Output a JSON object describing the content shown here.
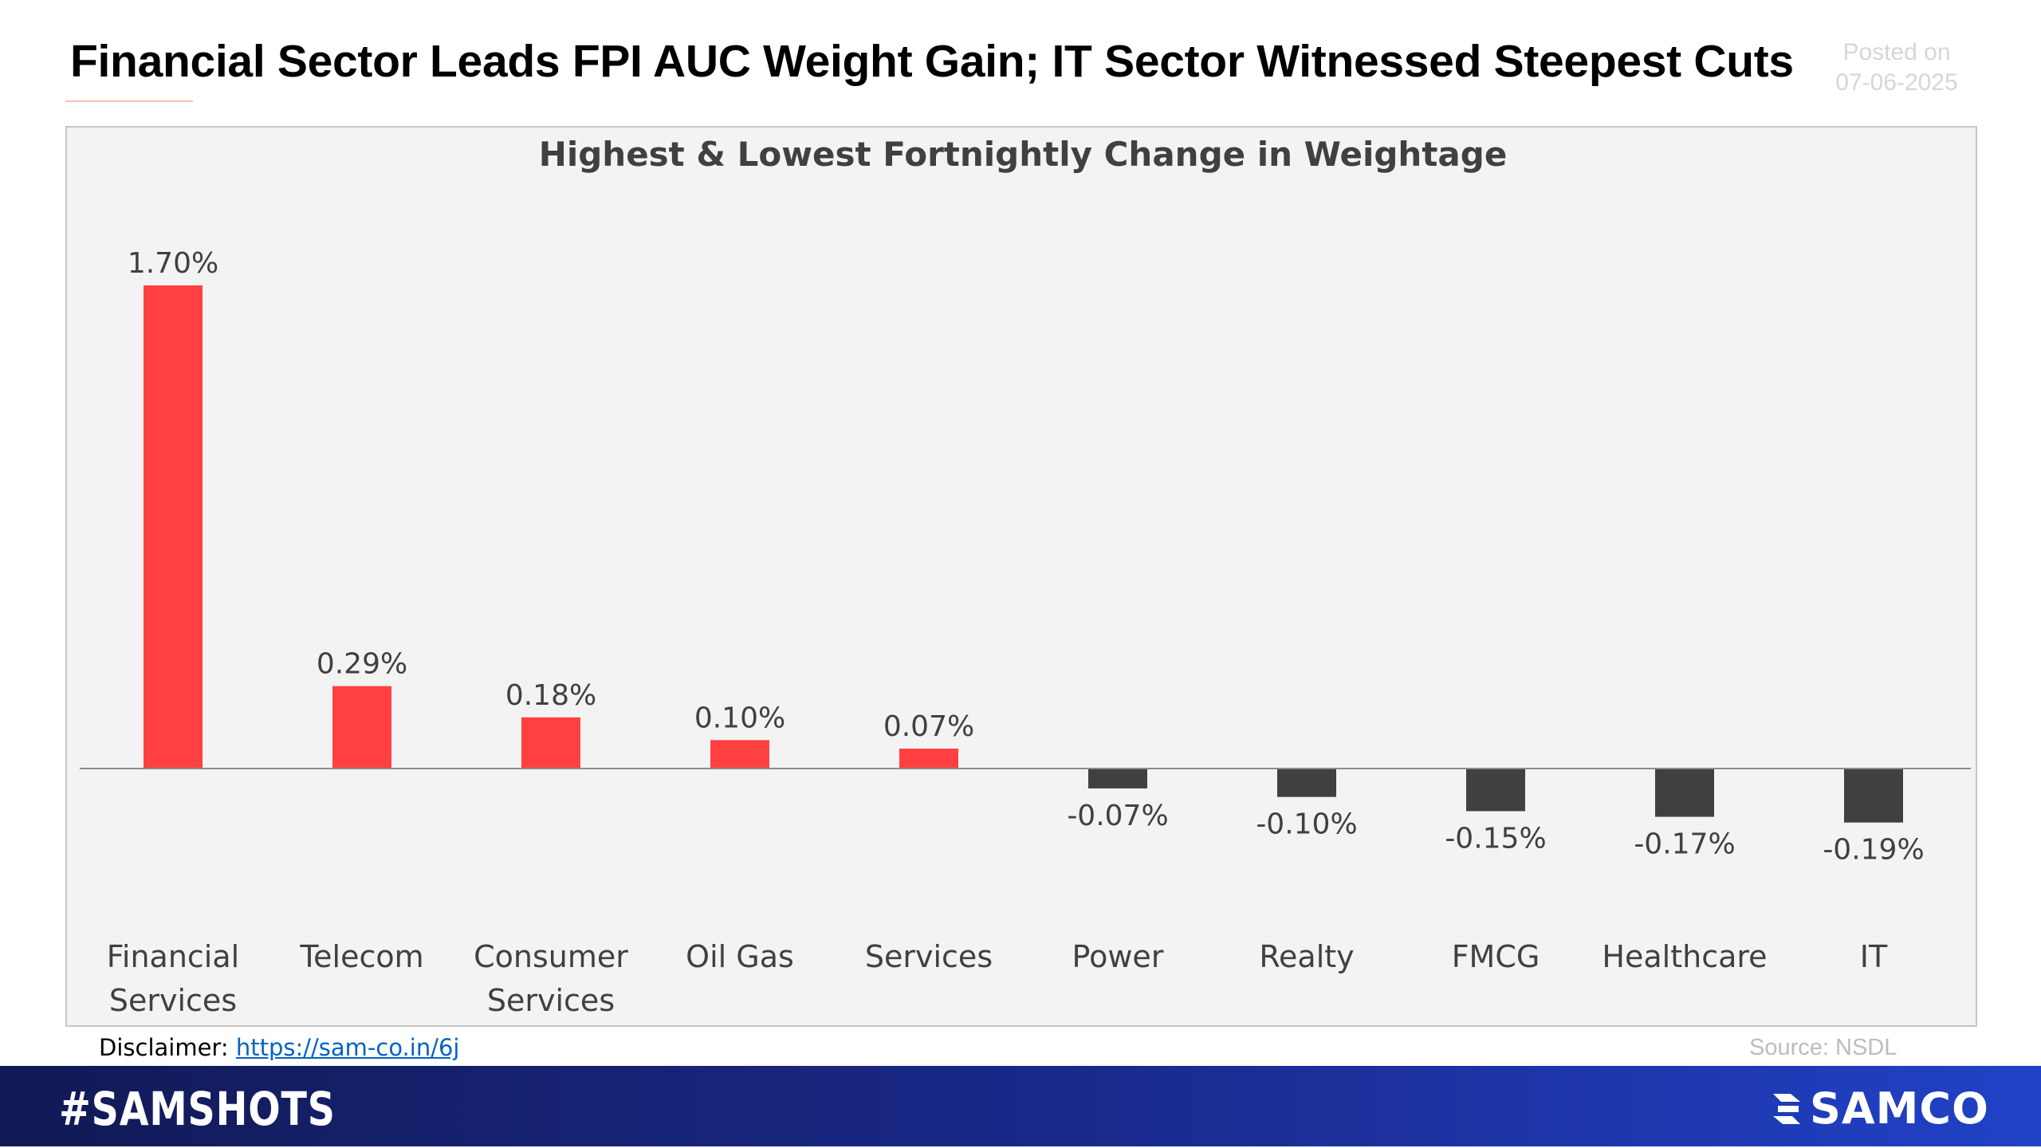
{
  "header": {
    "title": "Financial Sector Leads FPI AUC Weight Gain; IT Sector Witnessed Steepest Cuts",
    "posted_label": "Posted on",
    "posted_date": "07-06-2025"
  },
  "footer": {
    "disclaimer_label": "Disclaimer:",
    "disclaimer_link": "https://sam-co.in/6j",
    "source": "Source: NSDL",
    "hashtag": "#SAMSHOTS",
    "brand": "SAMCO"
  },
  "colors": {
    "positive": "#ff4040",
    "negative": "#404040",
    "panel": "#f3f3f3",
    "footer_start": "#111a55",
    "footer_end": "#2142c6"
  },
  "chart_data": {
    "type": "bar",
    "title": "Highest & Lowest Fortnightly Change in Weightage",
    "xlabel": "",
    "ylabel": "",
    "grid": false,
    "legend": "none",
    "categories": [
      [
        "Financial",
        "Services"
      ],
      [
        "Telecom"
      ],
      [
        "Consumer",
        "Services"
      ],
      [
        "Oil Gas"
      ],
      [
        "Services"
      ],
      [
        "Power"
      ],
      [
        "Realty"
      ],
      [
        "FMCG"
      ],
      [
        "Healthcare"
      ],
      [
        "IT"
      ]
    ],
    "values": [
      1.7,
      0.29,
      0.18,
      0.1,
      0.07,
      -0.07,
      -0.1,
      -0.15,
      -0.17,
      -0.19
    ],
    "data_labels": [
      "1.70%",
      "0.29%",
      "0.18%",
      "0.10%",
      "0.07%",
      "-0.07%",
      "-0.10%",
      "-0.15%",
      "-0.17%",
      "-0.19%"
    ],
    "unit": "%",
    "ylim": [
      -0.19,
      1.7
    ]
  }
}
